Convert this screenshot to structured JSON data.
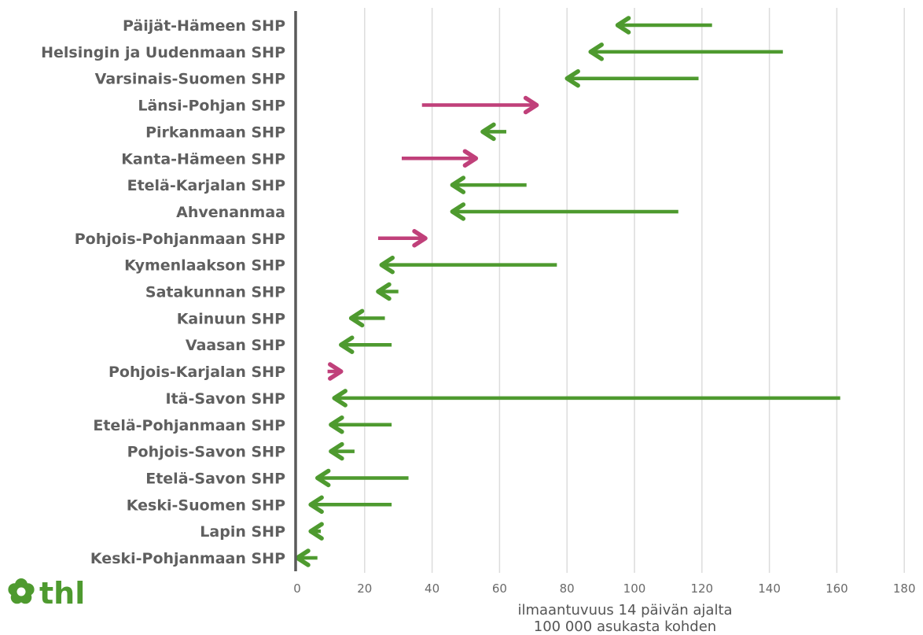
{
  "chart_data": {
    "type": "arrow",
    "categories": [
      "Päijät-Hämeen SHP",
      "Helsingin ja Uudenmaan SHP",
      "Varsinais-Suomen SHP",
      "Länsi-Pohjan SHP",
      "Pirkanmaan SHP",
      "Kanta-Hämeen SHP",
      "Etelä-Karjalan SHP",
      "Ahvenanmaa",
      "Pohjois-Pohjanmaan SHP",
      "Kymenlaakson SHP",
      "Satakunnan SHP",
      "Kainuun SHP",
      "Vaasan SHP",
      "Pohjois-Karjalan SHP",
      "Itä-Savon SHP",
      "Etelä-Pohjanmaan SHP",
      "Pohjois-Savon SHP",
      "Etelä-Savon SHP",
      "Keski-Suomen SHP",
      "Lapin SHP",
      "Keski-Pohjanmaan SHP"
    ],
    "series": [
      {
        "values_from": [
          123,
          144,
          119,
          37,
          62,
          31,
          68,
          113,
          24,
          77,
          30,
          26,
          28,
          9,
          161,
          28,
          17,
          33,
          28,
          7,
          6
        ],
        "values_to": [
          95,
          87,
          80,
          71,
          55,
          53,
          46,
          46,
          38,
          25,
          24,
          16,
          13,
          13,
          11,
          10,
          10,
          6,
          4,
          4,
          0
        ]
      }
    ],
    "colors": {
      "decrease": "#4e9a2f",
      "increase": "#c0407a"
    },
    "xlabel": "ilmaantuvuus 14 päivän ajalta\n100 000 asukasta kohden",
    "xlabel_lines": [
      "ilmaantuvuus 14 päivän ajalta",
      "100 000 asukasta kohden"
    ],
    "xlim": [
      0,
      180
    ],
    "xticks": [
      0,
      20,
      40,
      60,
      80,
      100,
      120,
      140,
      160,
      180
    ],
    "grid": true
  },
  "logo": {
    "text": "thl",
    "icon": "clover-icon",
    "color": "#4e9a2f"
  },
  "colors": {
    "label": "#5f5f5f",
    "grid": "#dcdcdc",
    "axis": "#5a5a5a"
  }
}
